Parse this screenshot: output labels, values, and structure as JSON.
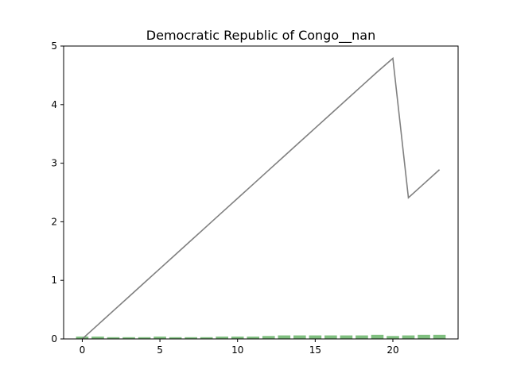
{
  "chart_data": {
    "type": "bar+line",
    "title": "Democratic Republic of Congo__nan",
    "xlabel": "",
    "ylabel": "",
    "xlim": [
      -1.2,
      24.2
    ],
    "ylim": [
      0,
      5
    ],
    "x_ticks": [
      0,
      5,
      10,
      15,
      20
    ],
    "y_ticks": [
      0,
      1,
      2,
      3,
      4,
      5
    ],
    "grid": false,
    "legend": "none",
    "bar_color": "#7fbf7f",
    "line_color": "#808080",
    "bars": {
      "x": [
        0,
        1,
        2,
        3,
        4,
        5,
        6,
        7,
        8,
        9,
        10,
        11,
        12,
        13,
        14,
        15,
        16,
        17,
        18,
        19,
        20,
        21,
        22,
        23
      ],
      "values": [
        0.04,
        0.04,
        0.03,
        0.03,
        0.03,
        0.04,
        0.03,
        0.03,
        0.03,
        0.04,
        0.04,
        0.04,
        0.05,
        0.06,
        0.06,
        0.06,
        0.06,
        0.06,
        0.06,
        0.07,
        0.05,
        0.06,
        0.07,
        0.07
      ]
    },
    "line": {
      "x": [
        0,
        1,
        2,
        3,
        4,
        5,
        6,
        7,
        8,
        9,
        10,
        11,
        12,
        13,
        14,
        15,
        16,
        17,
        18,
        19,
        20,
        21,
        22,
        23
      ],
      "values": [
        0.0,
        0.24,
        0.48,
        0.72,
        0.96,
        1.2,
        1.44,
        1.68,
        1.92,
        2.16,
        2.4,
        2.64,
        2.88,
        3.12,
        3.36,
        3.6,
        3.84,
        4.08,
        4.32,
        4.56,
        4.79,
        2.41,
        2.65,
        2.89
      ]
    }
  }
}
